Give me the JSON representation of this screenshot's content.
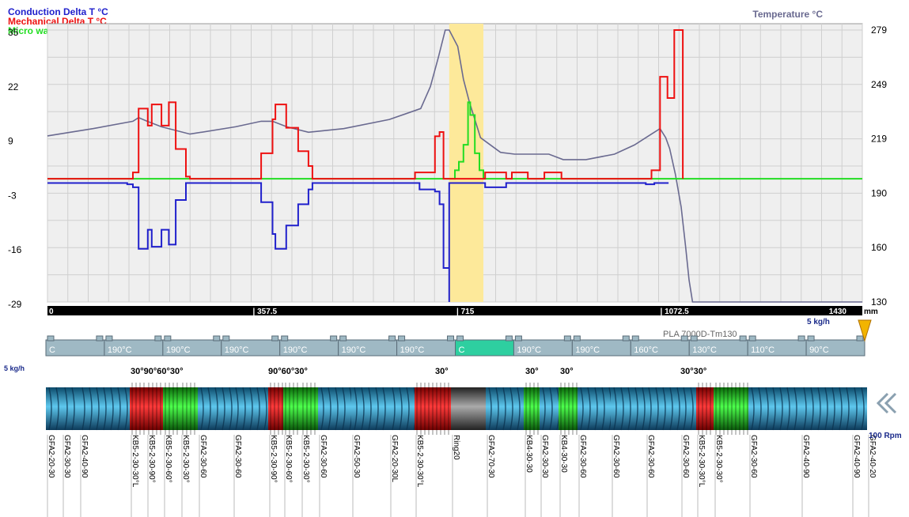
{
  "colors": {
    "conduction": "#2020cc",
    "mechanical": "#ee1111",
    "microwave": "#22dd22",
    "temperature": "#6a6a90",
    "highlight": "#fde99a",
    "barrel": "#9fb9c4",
    "barrel_active": "#2ecfa0",
    "screw_blue": "#2aa0c8",
    "kneading_red": "#e01010",
    "kneading_green": "#10d010",
    "ring": "#666666"
  },
  "legend": {
    "conduction": "Conduction Delta T °C",
    "mechanical": "Mechanical Delta T °C",
    "microwave": "Micro waves heating °C"
  },
  "right_axis_title": "Temperature °C",
  "chart_data": {
    "type": "line",
    "x_unit": "mm",
    "xlim": [
      0,
      1430
    ],
    "x_ticks": [
      "0",
      "| 357.5",
      "| 715",
      "| 1072.5",
      "1430"
    ],
    "y_left_ticks": [
      "35",
      "22",
      "9",
      "-3",
      "-16",
      "-29"
    ],
    "y_left_range": [
      -29,
      35
    ],
    "y_right_ticks": [
      "279",
      "249",
      "219",
      "190",
      "160",
      "130"
    ],
    "y_right_range": [
      130,
      279
    ],
    "highlight_x": [
      705,
      765
    ],
    "series": [
      {
        "name": "Conduction Delta T °C",
        "axis": "left",
        "step": true,
        "points": [
          [
            0,
            -1
          ],
          [
            80,
            -1
          ],
          [
            140,
            -1.3
          ],
          [
            150,
            -2
          ],
          [
            160,
            -16.5
          ],
          [
            172,
            -16.5
          ],
          [
            176,
            -12
          ],
          [
            183,
            -16
          ],
          [
            195,
            -16
          ],
          [
            200,
            -12
          ],
          [
            213,
            -15.5
          ],
          [
            220,
            -15.5
          ],
          [
            225,
            -5
          ],
          [
            243,
            -1
          ],
          [
            330,
            -1
          ],
          [
            375,
            -5.5
          ],
          [
            395,
            -13
          ],
          [
            400,
            -16.5
          ],
          [
            415,
            -16.5
          ],
          [
            419,
            -11
          ],
          [
            430,
            -11
          ],
          [
            440,
            -6
          ],
          [
            458,
            -2.5
          ],
          [
            465,
            -1
          ],
          [
            530,
            -1
          ],
          [
            650,
            -1
          ],
          [
            653,
            -2.5
          ],
          [
            680,
            -3
          ],
          [
            688,
            -6
          ],
          [
            695,
            -21
          ],
          [
            705,
            -29
          ],
          [
            705,
            -1
          ],
          [
            768,
            -1
          ],
          [
            768,
            -2
          ],
          [
            800,
            -2
          ],
          [
            805,
            -1
          ],
          [
            1050,
            -1.3
          ],
          [
            1065,
            -1
          ],
          [
            1090,
            -1
          ]
        ]
      },
      {
        "name": "Mechanical Delta T °C",
        "axis": "left",
        "step": true,
        "points": [
          [
            0,
            0
          ],
          [
            150,
            0
          ],
          [
            150,
            1.5
          ],
          [
            160,
            16.5
          ],
          [
            172,
            16.5
          ],
          [
            176,
            12.5
          ],
          [
            183,
            17.5
          ],
          [
            195,
            17.5
          ],
          [
            200,
            12.5
          ],
          [
            213,
            18
          ],
          [
            220,
            18
          ],
          [
            225,
            7
          ],
          [
            243,
            0.5
          ],
          [
            250,
            0
          ],
          [
            330,
            0
          ],
          [
            375,
            6
          ],
          [
            395,
            14
          ],
          [
            400,
            17.5
          ],
          [
            415,
            17.5
          ],
          [
            419,
            12
          ],
          [
            430,
            12
          ],
          [
            440,
            6.5
          ],
          [
            458,
            3
          ],
          [
            465,
            0
          ],
          [
            645,
            0
          ],
          [
            645,
            1.5
          ],
          [
            673,
            1.5
          ],
          [
            680,
            10
          ],
          [
            688,
            11
          ],
          [
            695,
            0
          ],
          [
            768,
            0
          ],
          [
            768,
            1.5
          ],
          [
            800,
            1.5
          ],
          [
            805,
            0
          ],
          [
            815,
            0
          ],
          [
            815,
            1.5
          ],
          [
            843,
            1.5
          ],
          [
            843,
            0
          ],
          [
            872,
            0
          ],
          [
            872,
            1.5
          ],
          [
            902,
            1.5
          ],
          [
            902,
            0
          ],
          [
            1060,
            0
          ],
          [
            1060,
            2
          ],
          [
            1075,
            24
          ],
          [
            1088,
            24
          ],
          [
            1088,
            19
          ],
          [
            1100,
            19
          ],
          [
            1100,
            35
          ],
          [
            1115,
            35
          ],
          [
            1115,
            0
          ]
        ]
      },
      {
        "name": "Micro waves heating °C",
        "axis": "left",
        "step": true,
        "points": [
          [
            0,
            0
          ],
          [
            715,
            0
          ],
          [
            715,
            2
          ],
          [
            722,
            4
          ],
          [
            730,
            8
          ],
          [
            738,
            18
          ],
          [
            742,
            15
          ],
          [
            750,
            6
          ],
          [
            758,
            2
          ],
          [
            765,
            0
          ],
          [
            1430,
            0
          ]
        ]
      },
      {
        "name": "Temperature °C",
        "axis": "right",
        "step": false,
        "points": [
          [
            0,
            221
          ],
          [
            80,
            225
          ],
          [
            150,
            229
          ],
          [
            160,
            231
          ],
          [
            175,
            229
          ],
          [
            200,
            226
          ],
          [
            250,
            222
          ],
          [
            330,
            226
          ],
          [
            375,
            229
          ],
          [
            395,
            229
          ],
          [
            420,
            226
          ],
          [
            458,
            223
          ],
          [
            520,
            225
          ],
          [
            600,
            230
          ],
          [
            655,
            236
          ],
          [
            672,
            248
          ],
          [
            686,
            264
          ],
          [
            698,
            279
          ],
          [
            705,
            279
          ],
          [
            720,
            270
          ],
          [
            730,
            252
          ],
          [
            740,
            240
          ],
          [
            750,
            230
          ],
          [
            760,
            220
          ],
          [
            795,
            212
          ],
          [
            820,
            211
          ],
          [
            845,
            211
          ],
          [
            880,
            211
          ],
          [
            905,
            208
          ],
          [
            945,
            208
          ],
          [
            995,
            211
          ],
          [
            1030,
            216
          ],
          [
            1060,
            222
          ],
          [
            1075,
            225
          ],
          [
            1085,
            220
          ],
          [
            1092,
            214
          ],
          [
            1102,
            200
          ],
          [
            1112,
            182
          ],
          [
            1120,
            160
          ],
          [
            1126,
            142
          ],
          [
            1132,
            130
          ],
          [
            1430,
            130
          ]
        ]
      }
    ]
  },
  "feed_rate_label": "5 kg/h",
  "feed_rate_label_2": "5 kg/h",
  "material_label": "PLA 7000D-Tm130",
  "barrel_temps": [
    "C",
    "190°C",
    "190°C",
    "190°C",
    "190°C",
    "190°C",
    "190°C",
    "C",
    "190°C",
    "190°C",
    "160°C",
    "130°C",
    "110°C",
    "90°C"
  ],
  "kneading_angles": [
    "30°90°60°30°",
    "90°60°30°",
    "30°",
    "30°",
    "30°",
    "30°30°"
  ],
  "screw_elements": [
    "GFA2-20-30",
    "GFA2-30-30",
    "GFA2-40-90",
    "KB5-2-30-30°L",
    "KB5-2-30-90°",
    "KB5-2-30-60°",
    "KB5-2-30-30°",
    "GFA2-30-60",
    "GFA2-30-60",
    "KB5-2-30-90°",
    "KB5-2-30-60°",
    "KB5-2-30-30°",
    "GFA2-30-60",
    "GFA2-50-30",
    "GFA2-20-30L",
    "KB5-2-30-30°L",
    "Ring20",
    "GFA2-70-30",
    "KB4-30-30",
    "GFA2-30-30",
    "KB4-30-30",
    "GFA2-30-60",
    "GFA2-30-60",
    "GFA2-30-60",
    "GFA2-30-60",
    "KB5-2-30-30°L",
    "KB5-2-30-30°",
    "GFA2-30-60",
    "GFA2-40-90",
    "GFA2-40-90",
    "GFA2-40-20"
  ],
  "rpm_label": "100 Rpm"
}
